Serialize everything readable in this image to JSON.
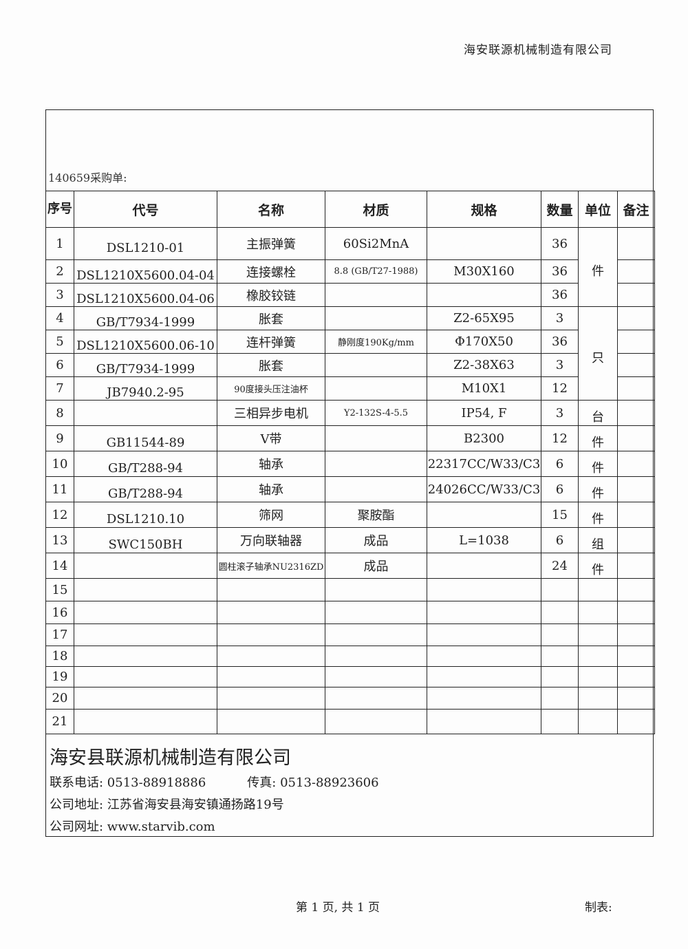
{
  "header": {
    "company": "海安联源机械制造有限公司"
  },
  "order_title": "140659采购单:",
  "columns": [
    "序号",
    "代号",
    "名称",
    "材质",
    "规格",
    "数量",
    "单位",
    "备注"
  ],
  "rows": [
    {
      "no": "1",
      "code": "DSL1210-01",
      "name": "主振弹簧",
      "material": "60Si2MnA",
      "spec": "",
      "qty": "36"
    },
    {
      "no": "2",
      "code": "DSL1210X5600.04-04",
      "name": "连接螺栓",
      "material": "8.8 (GB/T27-1988)",
      "spec": "M30X160",
      "qty": "36"
    },
    {
      "no": "3",
      "code": "DSL1210X5600.04-06",
      "name": "橡胶铰链",
      "material": "",
      "spec": "",
      "qty": "36"
    },
    {
      "no": "4",
      "code": "GB/T7934-1999",
      "name": "胀套",
      "material": "",
      "spec": "Z2-65X95",
      "qty": "3"
    },
    {
      "no": "5",
      "code": "DSL1210X5600.06-10",
      "name": "连杆弹簧",
      "material": "静刚度190Kg/mm",
      "spec": "Φ170X50",
      "qty": "36"
    },
    {
      "no": "6",
      "code": "GB/T7934-1999",
      "name": "胀套",
      "material": "",
      "spec": "Z2-38X63",
      "qty": "3"
    },
    {
      "no": "7",
      "code": "JB7940.2-95",
      "name": "90度接头压注油杯",
      "material": "",
      "spec": "M10X1",
      "qty": "12"
    },
    {
      "no": "8",
      "code": "",
      "name": "三相异步电机",
      "material": "Y2-132S-4-5.5",
      "spec": "IP54, F",
      "qty": "3"
    },
    {
      "no": "9",
      "code": "GB11544-89",
      "name": "V带",
      "material": "",
      "spec": "B2300",
      "qty": "12"
    },
    {
      "no": "10",
      "code": "GB/T288-94",
      "name": "轴承",
      "material": "",
      "spec": "22317CC/W33/C3",
      "qty": "6"
    },
    {
      "no": "11",
      "code": "GB/T288-94",
      "name": "轴承",
      "material": "",
      "spec": "24026CC/W33/C3",
      "qty": "6"
    },
    {
      "no": "12",
      "code": "DSL1210.10",
      "name": "筛网",
      "material": "聚胺酯",
      "spec": "",
      "qty": "15"
    },
    {
      "no": "13",
      "code": "SWC150BH",
      "name": "万向联轴器",
      "material": "成品",
      "spec": "L=1038",
      "qty": "6"
    },
    {
      "no": "14",
      "code": "",
      "name": "圆柱滚子轴承NU2316ZD",
      "material": "成品",
      "spec": "",
      "qty": "24"
    },
    {
      "no": "15"
    },
    {
      "no": "16"
    },
    {
      "no": "17"
    },
    {
      "no": "18"
    },
    {
      "no": "19"
    },
    {
      "no": "20"
    },
    {
      "no": "21"
    }
  ],
  "units": {
    "r1_3": "件",
    "r4_7": "只",
    "r8": "台",
    "r9": "件",
    "r10": "件",
    "r11": "件",
    "r12": "件",
    "r13": "组",
    "r14": "件"
  },
  "footer": {
    "company": "海安县联源机械制造有限公司",
    "phone": "联系电话: 0513-88918886",
    "fax": "传真: 0513-88923606",
    "address": "公司地址: 江苏省海安县海安镇通扬路19号",
    "website": "公司网址: www.starvib.com"
  },
  "pager": "第 1 页, 共 1 页",
  "maker": "制表:"
}
